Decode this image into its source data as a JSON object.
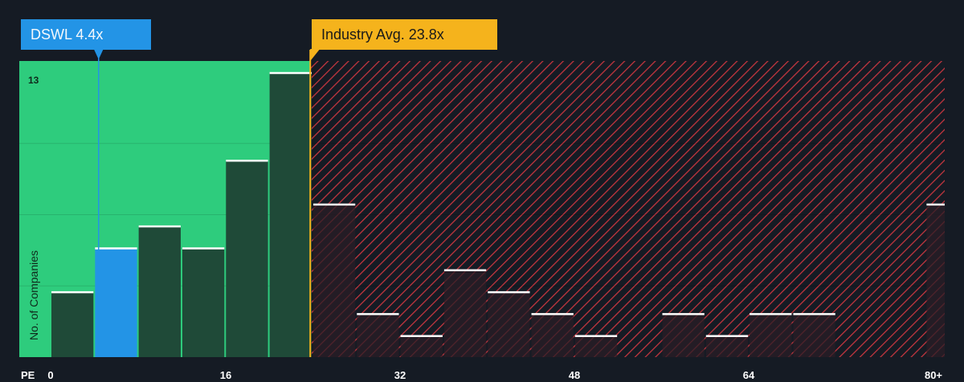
{
  "subject": {
    "label": "DSWL 4.4x",
    "value": 4.4,
    "color": "#2394e6"
  },
  "industry": {
    "label": "Industry Avg. 23.8x",
    "value": 23.8,
    "color": "#f5b31c"
  },
  "colors": {
    "background": "#151b24",
    "fair_zone": "#2ecc7d",
    "bar_in_zone": "#1f4a38",
    "bar_subject": "#2394e6",
    "bar_out_zone": "#2a1e26",
    "hatch": "#c8363f",
    "bar_top": "#ffffff"
  },
  "chart_data": {
    "type": "bar",
    "xlabel": "PE",
    "ylabel": "No. of Companies",
    "x_ticks": [
      "0",
      "16",
      "32",
      "48",
      "64",
      "80+"
    ],
    "y_max_label": "13",
    "ylim": [
      0,
      13.5
    ],
    "bin_width": 4,
    "bins": [
      {
        "start": 0,
        "value": 3
      },
      {
        "start": 4,
        "value": 5
      },
      {
        "start": 8,
        "value": 6
      },
      {
        "start": 12,
        "value": 5
      },
      {
        "start": 16,
        "value": 9
      },
      {
        "start": 20,
        "value": 13
      },
      {
        "start": 24,
        "value": 7
      },
      {
        "start": 28,
        "value": 2
      },
      {
        "start": 32,
        "value": 1
      },
      {
        "start": 36,
        "value": 4
      },
      {
        "start": 40,
        "value": 3
      },
      {
        "start": 44,
        "value": 2
      },
      {
        "start": 48,
        "value": 1
      },
      {
        "start": 52,
        "value": 0
      },
      {
        "start": 56,
        "value": 2
      },
      {
        "start": 60,
        "value": 1
      },
      {
        "start": 64,
        "value": 2
      },
      {
        "start": 68,
        "value": 2
      },
      {
        "start": 72,
        "value": 0
      },
      {
        "start": 76,
        "value": 0
      },
      {
        "start": 80,
        "value": 7
      }
    ]
  }
}
